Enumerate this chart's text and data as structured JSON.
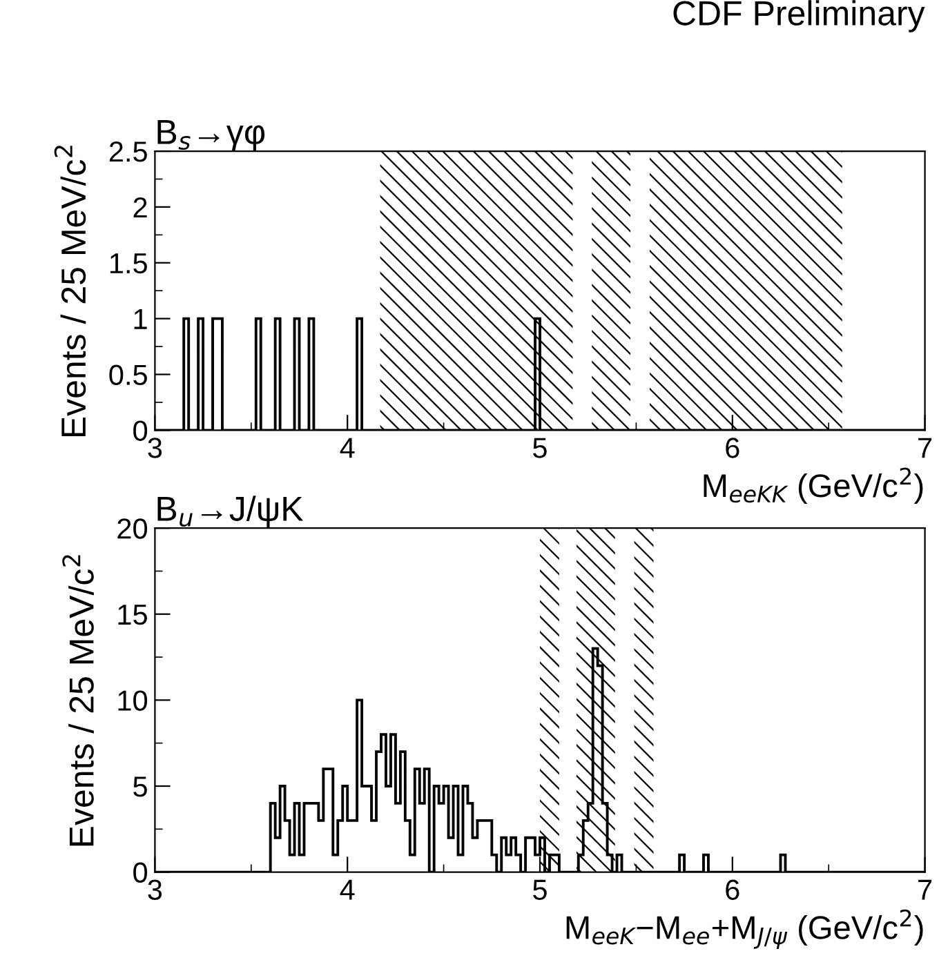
{
  "chart_data": [
    {
      "type": "histogram",
      "title": "B$_{s}$→γφ",
      "xlabel": "M$_{eeKK}$ (GeV/c$^{2}$)",
      "ylabel": "Events / 25 MeV/c$^{2}$",
      "annotations": [
        "CDF Preliminary"
      ],
      "bins": [
        3,
        3.025,
        3.05,
        3.075,
        3.1,
        3.125,
        3.15,
        3.175,
        3.2,
        3.225,
        3.25,
        3.275,
        3.3,
        3.325,
        3.35,
        3.375,
        3.4,
        3.425,
        3.45,
        3.475,
        3.5,
        3.525,
        3.55,
        3.575,
        3.6,
        3.625,
        3.65,
        3.675,
        3.7,
        3.725,
        3.75,
        3.775,
        3.8,
        3.825,
        3.85,
        3.875,
        3.9,
        3.925,
        3.95,
        3.975,
        4,
        4.025,
        4.05,
        4.075,
        4.1,
        4.125,
        4.15,
        4.175,
        4.2,
        4.225,
        4.25,
        4.275,
        4.3,
        4.325,
        4.35,
        4.375,
        4.4,
        4.425,
        4.45,
        4.475,
        4.5,
        4.525,
        4.55,
        4.575,
        4.6,
        4.625,
        4.65,
        4.675,
        4.7,
        4.725,
        4.75,
        4.775,
        4.8,
        4.825,
        4.85,
        4.875,
        4.9,
        4.925,
        4.95,
        4.975,
        5,
        5.025,
        5.05,
        5.075,
        5.1,
        5.125,
        5.15,
        5.175,
        5.2,
        5.225,
        5.25,
        5.275,
        5.3,
        5.325,
        5.35,
        5.375,
        5.4,
        5.425,
        5.45,
        5.475,
        5.5,
        5.525,
        5.55,
        5.575,
        5.6,
        5.625,
        5.65,
        5.675,
        5.7,
        5.725,
        5.75,
        5.775,
        5.8,
        5.825,
        5.85,
        5.875,
        5.9,
        5.925,
        5.95,
        5.975,
        6,
        6.025,
        6.05,
        6.075,
        6.1,
        6.125,
        6.15,
        6.175,
        6.2,
        6.225,
        6.25,
        6.275,
        6.3,
        6.325,
        6.35,
        6.375,
        6.4,
        6.425,
        6.45,
        6.475,
        6.5,
        6.525,
        6.55,
        6.575,
        6.6,
        6.625,
        6.65,
        6.675,
        6.7,
        6.725,
        6.75,
        6.775,
        6.8,
        6.825,
        6.85,
        6.875,
        6.9,
        6.925,
        6.95,
        6.975,
        7
      ],
      "values": [
        0,
        0,
        0,
        0,
        0,
        0,
        1,
        0,
        0,
        1,
        0,
        0,
        1,
        1,
        0,
        0,
        0,
        0,
        0,
        0,
        0,
        1,
        0,
        0,
        0,
        1,
        0,
        0,
        0,
        1,
        0,
        0,
        1,
        0,
        0,
        0,
        0,
        0,
        0,
        0,
        0,
        0,
        1,
        0,
        0,
        0,
        0,
        0,
        0,
        0,
        0,
        0,
        0,
        0,
        0,
        0,
        0,
        0,
        0,
        0,
        0,
        0,
        0,
        0,
        0,
        0,
        0,
        0,
        0,
        0,
        0,
        0,
        0,
        0,
        0,
        0,
        0,
        0,
        0,
        1,
        0,
        0,
        0,
        0,
        0,
        0,
        0,
        0,
        0,
        0,
        0,
        0,
        0,
        0,
        0,
        0,
        0,
        0,
        0,
        0,
        0,
        0,
        0,
        0,
        0,
        0,
        0,
        0,
        0,
        0,
        0,
        0,
        0,
        0,
        0,
        0,
        0,
        0,
        0,
        0,
        0,
        0,
        0,
        0,
        0,
        0,
        0,
        0,
        0,
        0,
        0,
        0,
        0,
        0,
        0,
        0,
        0,
        0,
        0,
        0,
        0,
        0,
        0,
        0,
        0,
        0,
        0,
        0,
        0,
        0,
        0,
        0,
        0,
        0,
        0,
        0,
        0,
        0,
        0,
        0
      ],
      "color": "#000000",
      "xlim": [
        3,
        7
      ],
      "xticks": [
        3,
        4,
        5,
        6,
        7
      ],
      "ylim": [
        0,
        2.5
      ],
      "yticks": [
        0,
        0.5,
        1,
        1.5,
        2,
        2.5
      ],
      "bands": [
        {
          "axis": "x",
          "from": 4.17,
          "to": 5.17,
          "color": "#000000"
        },
        {
          "axis": "x",
          "from": 5.27,
          "to": 5.47,
          "color": "#000000"
        },
        {
          "axis": "x",
          "from": 5.57,
          "to": 6.57,
          "color": "#000000"
        }
      ]
    },
    {
      "type": "histogram",
      "title": "B$_{u}$→J/ψK",
      "xlabel": "M$_{eeK}$−M$_{ee}$+M$_{J/ψ}$ (GeV/c$^{2}$)",
      "ylabel": "Events / 25 MeV/c$^{2}$",
      "bins": [
        3,
        3.025,
        3.05,
        3.075,
        3.1,
        3.125,
        3.15,
        3.175,
        3.2,
        3.225,
        3.25,
        3.275,
        3.3,
        3.325,
        3.35,
        3.375,
        3.4,
        3.425,
        3.45,
        3.475,
        3.5,
        3.525,
        3.55,
        3.575,
        3.6,
        3.625,
        3.65,
        3.675,
        3.7,
        3.725,
        3.75,
        3.775,
        3.8,
        3.825,
        3.85,
        3.875,
        3.9,
        3.925,
        3.95,
        3.975,
        4,
        4.025,
        4.05,
        4.075,
        4.1,
        4.125,
        4.15,
        4.175,
        4.2,
        4.225,
        4.25,
        4.275,
        4.3,
        4.325,
        4.35,
        4.375,
        4.4,
        4.425,
        4.45,
        4.475,
        4.5,
        4.525,
        4.55,
        4.575,
        4.6,
        4.625,
        4.65,
        4.675,
        4.7,
        4.725,
        4.75,
        4.775,
        4.8,
        4.825,
        4.85,
        4.875,
        4.9,
        4.925,
        4.95,
        4.975,
        5,
        5.025,
        5.05,
        5.075,
        5.1,
        5.125,
        5.15,
        5.175,
        5.2,
        5.225,
        5.25,
        5.275,
        5.3,
        5.325,
        5.35,
        5.375,
        5.4,
        5.425,
        5.45,
        5.475,
        5.5,
        5.525,
        5.55,
        5.575,
        5.6,
        5.625,
        5.65,
        5.675,
        5.7,
        5.725,
        5.75,
        5.775,
        5.8,
        5.825,
        5.85,
        5.875,
        5.9,
        5.925,
        5.95,
        5.975,
        6,
        6.025,
        6.05,
        6.075,
        6.1,
        6.125,
        6.15,
        6.175,
        6.2,
        6.225,
        6.25,
        6.275,
        6.3,
        6.325,
        6.35,
        6.375,
        6.4,
        6.425,
        6.45,
        6.475,
        6.5,
        6.525,
        6.55,
        6.575,
        6.6,
        6.625,
        6.65,
        6.675,
        6.7,
        6.725,
        6.75,
        6.775,
        6.8,
        6.825,
        6.85,
        6.875,
        6.9,
        6.925,
        6.95,
        6.975,
        7
      ],
      "values": [
        0,
        0,
        0,
        0,
        0,
        0,
        0,
        0,
        0,
        0,
        0,
        0,
        0,
        0,
        0,
        0,
        0,
        0,
        0,
        0,
        0,
        0,
        0,
        0,
        4,
        2,
        5,
        3,
        1,
        4,
        1,
        4,
        4,
        4,
        3,
        6,
        6,
        1,
        3,
        5,
        3,
        3,
        10,
        5,
        5,
        3,
        7,
        8,
        5,
        8,
        4,
        7,
        3,
        1,
        6,
        4,
        6,
        0,
        5,
        4,
        5,
        2,
        5,
        1,
        5,
        4,
        2,
        3,
        3,
        3,
        1,
        0,
        2,
        1,
        2,
        1,
        0,
        2,
        2,
        1,
        2,
        0,
        1,
        1,
        0,
        0,
        0,
        0,
        1,
        3,
        4,
        13,
        12,
        4,
        1,
        0,
        1,
        0,
        0,
        0,
        0,
        0,
        0,
        0,
        0,
        0,
        0,
        0,
        0,
        1,
        0,
        0,
        0,
        0,
        1,
        0,
        0,
        0,
        0,
        0,
        0,
        0,
        0,
        0,
        0,
        0,
        0,
        0,
        0,
        0,
        1,
        0,
        0,
        0,
        0,
        0,
        0,
        0,
        0,
        0,
        0,
        0,
        0,
        0,
        0,
        0,
        0,
        0,
        0,
        0,
        0,
        0,
        0,
        0,
        0,
        0,
        0,
        0,
        0,
        0
      ],
      "color": "#000000",
      "xlim": [
        3,
        7
      ],
      "xticks": [
        3,
        4,
        5,
        6,
        7
      ],
      "ylim": [
        0,
        20
      ],
      "yticks": [
        0,
        5,
        10,
        15,
        20
      ],
      "bands": [
        {
          "axis": "x",
          "from": 5.0,
          "to": 5.1,
          "color": "#000000"
        },
        {
          "axis": "x",
          "from": 5.19,
          "to": 5.39,
          "color": "#000000"
        },
        {
          "axis": "x",
          "from": 5.49,
          "to": 5.59,
          "color": "#000000"
        }
      ]
    }
  ]
}
